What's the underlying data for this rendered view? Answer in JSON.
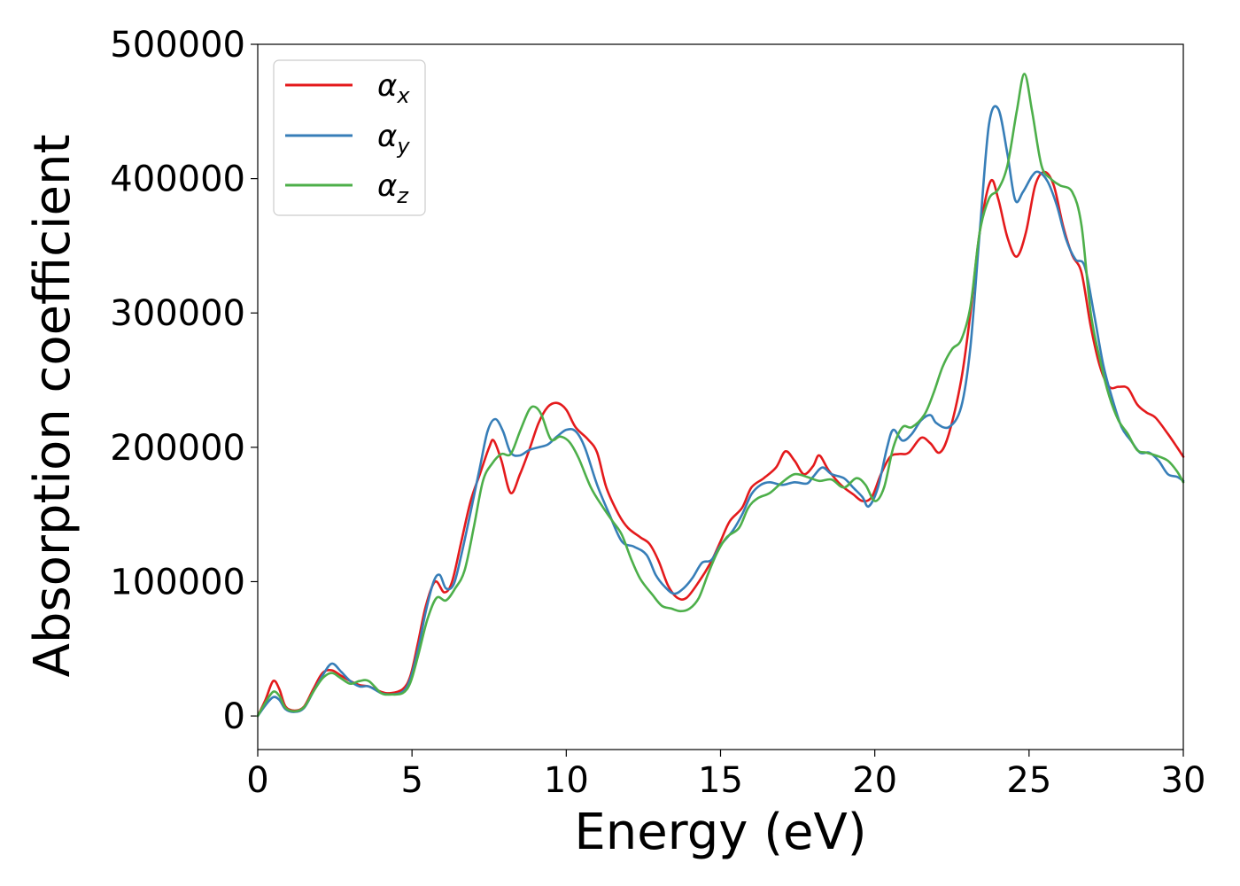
{
  "chart_data": {
    "type": "line",
    "xlabel": "Energy (eV)",
    "ylabel": "Absorption coefficient",
    "xlim": [
      0,
      30
    ],
    "ylim": [
      -25000,
      500000
    ],
    "xticks": [
      "0",
      "5",
      "10",
      "15",
      "20",
      "25",
      "30"
    ],
    "yticks": [
      "0",
      "100000",
      "200000",
      "300000",
      "400000",
      "500000"
    ],
    "grid": false,
    "legend_position": "upper-left",
    "series": [
      {
        "name": "α",
        "subscript": "x",
        "color": "#e41a1c",
        "points": [
          [
            0,
            0
          ],
          [
            0.25,
            12000
          ],
          [
            0.5,
            26000
          ],
          [
            0.7,
            20000
          ],
          [
            0.9,
            7000
          ],
          [
            1.2,
            4000
          ],
          [
            1.5,
            7000
          ],
          [
            1.8,
            20000
          ],
          [
            2.1,
            32000
          ],
          [
            2.4,
            34000
          ],
          [
            2.7,
            30000
          ],
          [
            3.0,
            26000
          ],
          [
            3.3,
            23000
          ],
          [
            3.6,
            22000
          ],
          [
            4.0,
            18000
          ],
          [
            4.3,
            17000
          ],
          [
            4.7,
            20000
          ],
          [
            4.95,
            30000
          ],
          [
            5.2,
            55000
          ],
          [
            5.45,
            82000
          ],
          [
            5.75,
            100000
          ],
          [
            6.05,
            92000
          ],
          [
            6.3,
            100000
          ],
          [
            6.6,
            130000
          ],
          [
            6.9,
            160000
          ],
          [
            7.2,
            180000
          ],
          [
            7.5,
            200000
          ],
          [
            7.65,
            205000
          ],
          [
            7.9,
            190000
          ],
          [
            8.2,
            166000
          ],
          [
            8.5,
            180000
          ],
          [
            8.8,
            198000
          ],
          [
            9.1,
            218000
          ],
          [
            9.4,
            230000
          ],
          [
            9.7,
            233000
          ],
          [
            10.0,
            228000
          ],
          [
            10.3,
            215000
          ],
          [
            10.7,
            206000
          ],
          [
            11.0,
            196000
          ],
          [
            11.3,
            170000
          ],
          [
            11.7,
            150000
          ],
          [
            12.0,
            140000
          ],
          [
            12.4,
            133000
          ],
          [
            12.7,
            128000
          ],
          [
            13.0,
            115000
          ],
          [
            13.3,
            97000
          ],
          [
            13.6,
            88000
          ],
          [
            13.9,
            88000
          ],
          [
            14.3,
            100000
          ],
          [
            14.7,
            115000
          ],
          [
            15.0,
            130000
          ],
          [
            15.3,
            145000
          ],
          [
            15.7,
            155000
          ],
          [
            16.0,
            170000
          ],
          [
            16.4,
            177000
          ],
          [
            16.8,
            185000
          ],
          [
            17.1,
            197000
          ],
          [
            17.4,
            190000
          ],
          [
            17.7,
            180000
          ],
          [
            18.0,
            186000
          ],
          [
            18.2,
            194000
          ],
          [
            18.5,
            183000
          ],
          [
            18.9,
            172000
          ],
          [
            19.3,
            165000
          ],
          [
            19.6,
            160000
          ],
          [
            19.9,
            163000
          ],
          [
            20.2,
            180000
          ],
          [
            20.5,
            193000
          ],
          [
            20.8,
            195000
          ],
          [
            21.1,
            196000
          ],
          [
            21.5,
            207000
          ],
          [
            21.8,
            203000
          ],
          [
            22.1,
            196000
          ],
          [
            22.4,
            210000
          ],
          [
            22.8,
            250000
          ],
          [
            23.1,
            300000
          ],
          [
            23.4,
            360000
          ],
          [
            23.75,
            398000
          ],
          [
            24.0,
            385000
          ],
          [
            24.3,
            356000
          ],
          [
            24.6,
            342000
          ],
          [
            24.9,
            360000
          ],
          [
            25.2,
            395000
          ],
          [
            25.5,
            405000
          ],
          [
            25.8,
            395000
          ],
          [
            26.1,
            365000
          ],
          [
            26.4,
            343000
          ],
          [
            26.7,
            330000
          ],
          [
            27.0,
            290000
          ],
          [
            27.3,
            260000
          ],
          [
            27.6,
            245000
          ],
          [
            27.9,
            245000
          ],
          [
            28.2,
            244000
          ],
          [
            28.5,
            232000
          ],
          [
            28.8,
            226000
          ],
          [
            29.1,
            222000
          ],
          [
            29.5,
            210000
          ],
          [
            29.8,
            200000
          ],
          [
            30.0,
            193000
          ]
        ]
      },
      {
        "name": "α",
        "subscript": "y",
        "color": "#377eb8",
        "points": [
          [
            0,
            0
          ],
          [
            0.25,
            8000
          ],
          [
            0.5,
            14000
          ],
          [
            0.7,
            12000
          ],
          [
            0.9,
            5000
          ],
          [
            1.2,
            3000
          ],
          [
            1.5,
            6000
          ],
          [
            1.8,
            18000
          ],
          [
            2.1,
            30000
          ],
          [
            2.4,
            39000
          ],
          [
            2.7,
            33000
          ],
          [
            3.0,
            26000
          ],
          [
            3.3,
            22000
          ],
          [
            3.6,
            22000
          ],
          [
            4.0,
            17000
          ],
          [
            4.3,
            16000
          ],
          [
            4.7,
            18000
          ],
          [
            4.95,
            28000
          ],
          [
            5.2,
            50000
          ],
          [
            5.45,
            78000
          ],
          [
            5.7,
            100000
          ],
          [
            5.9,
            105000
          ],
          [
            6.1,
            95000
          ],
          [
            6.35,
            98000
          ],
          [
            6.6,
            120000
          ],
          [
            6.9,
            152000
          ],
          [
            7.2,
            185000
          ],
          [
            7.45,
            212000
          ],
          [
            7.7,
            221000
          ],
          [
            7.95,
            212000
          ],
          [
            8.2,
            196000
          ],
          [
            8.5,
            194000
          ],
          [
            8.8,
            198000
          ],
          [
            9.1,
            200000
          ],
          [
            9.4,
            202000
          ],
          [
            9.7,
            208000
          ],
          [
            10.0,
            213000
          ],
          [
            10.3,
            212000
          ],
          [
            10.6,
            200000
          ],
          [
            11.0,
            172000
          ],
          [
            11.4,
            150000
          ],
          [
            11.8,
            130000
          ],
          [
            12.2,
            126000
          ],
          [
            12.6,
            120000
          ],
          [
            12.9,
            105000
          ],
          [
            13.2,
            96000
          ],
          [
            13.5,
            91000
          ],
          [
            13.8,
            95000
          ],
          [
            14.1,
            103000
          ],
          [
            14.4,
            114000
          ],
          [
            14.7,
            116000
          ],
          [
            15.0,
            127000
          ],
          [
            15.4,
            138000
          ],
          [
            15.7,
            150000
          ],
          [
            16.0,
            165000
          ],
          [
            16.3,
            172000
          ],
          [
            16.6,
            174000
          ],
          [
            17.0,
            172000
          ],
          [
            17.4,
            174000
          ],
          [
            17.8,
            173000
          ],
          [
            18.0,
            178000
          ],
          [
            18.3,
            185000
          ],
          [
            18.6,
            180000
          ],
          [
            19.0,
            177000
          ],
          [
            19.3,
            170000
          ],
          [
            19.6,
            163000
          ],
          [
            19.8,
            156000
          ],
          [
            20.1,
            170000
          ],
          [
            20.4,
            200000
          ],
          [
            20.6,
            213000
          ],
          [
            20.9,
            205000
          ],
          [
            21.2,
            210000
          ],
          [
            21.5,
            220000
          ],
          [
            21.8,
            224000
          ],
          [
            22.0,
            218000
          ],
          [
            22.4,
            215000
          ],
          [
            22.8,
            230000
          ],
          [
            23.1,
            275000
          ],
          [
            23.4,
            360000
          ],
          [
            23.7,
            440000
          ],
          [
            24.0,
            452000
          ],
          [
            24.3,
            418000
          ],
          [
            24.55,
            384000
          ],
          [
            24.8,
            390000
          ],
          [
            25.1,
            402000
          ],
          [
            25.3,
            405000
          ],
          [
            25.6,
            398000
          ],
          [
            25.9,
            380000
          ],
          [
            26.2,
            355000
          ],
          [
            26.5,
            340000
          ],
          [
            26.8,
            335000
          ],
          [
            27.1,
            300000
          ],
          [
            27.4,
            262000
          ],
          [
            27.7,
            236000
          ],
          [
            28.0,
            215000
          ],
          [
            28.3,
            205000
          ],
          [
            28.6,
            196000
          ],
          [
            28.9,
            196000
          ],
          [
            29.2,
            190000
          ],
          [
            29.5,
            180000
          ],
          [
            29.8,
            178000
          ],
          [
            30.0,
            175000
          ]
        ]
      },
      {
        "name": "α",
        "subscript": "z",
        "color": "#4daf4a",
        "points": [
          [
            0,
            0
          ],
          [
            0.25,
            10000
          ],
          [
            0.5,
            18000
          ],
          [
            0.7,
            15000
          ],
          [
            0.9,
            6000
          ],
          [
            1.2,
            3500
          ],
          [
            1.5,
            6500
          ],
          [
            1.8,
            18000
          ],
          [
            2.1,
            28000
          ],
          [
            2.4,
            32000
          ],
          [
            2.7,
            28000
          ],
          [
            3.0,
            24000
          ],
          [
            3.3,
            26000
          ],
          [
            3.6,
            26000
          ],
          [
            4.0,
            17000
          ],
          [
            4.3,
            16000
          ],
          [
            4.7,
            17000
          ],
          [
            4.95,
            25000
          ],
          [
            5.2,
            45000
          ],
          [
            5.5,
            72000
          ],
          [
            5.8,
            88000
          ],
          [
            6.1,
            86000
          ],
          [
            6.4,
            95000
          ],
          [
            6.7,
            108000
          ],
          [
            7.0,
            140000
          ],
          [
            7.3,
            175000
          ],
          [
            7.6,
            188000
          ],
          [
            7.9,
            195000
          ],
          [
            8.2,
            195000
          ],
          [
            8.5,
            212000
          ],
          [
            8.8,
            228000
          ],
          [
            9.0,
            230000
          ],
          [
            9.2,
            224000
          ],
          [
            9.5,
            206000
          ],
          [
            9.8,
            208000
          ],
          [
            10.1,
            204000
          ],
          [
            10.4,
            192000
          ],
          [
            10.8,
            170000
          ],
          [
            11.2,
            155000
          ],
          [
            11.5,
            145000
          ],
          [
            11.8,
            135000
          ],
          [
            12.1,
            117000
          ],
          [
            12.4,
            102000
          ],
          [
            12.8,
            90000
          ],
          [
            13.1,
            82000
          ],
          [
            13.4,
            80000
          ],
          [
            13.7,
            78000
          ],
          [
            14.0,
            80000
          ],
          [
            14.3,
            88000
          ],
          [
            14.6,
            106000
          ],
          [
            14.9,
            122000
          ],
          [
            15.2,
            133000
          ],
          [
            15.6,
            140000
          ],
          [
            15.9,
            155000
          ],
          [
            16.2,
            162000
          ],
          [
            16.6,
            166000
          ],
          [
            17.0,
            174000
          ],
          [
            17.4,
            180000
          ],
          [
            17.8,
            178000
          ],
          [
            18.2,
            175000
          ],
          [
            18.6,
            176000
          ],
          [
            19.0,
            170000
          ],
          [
            19.4,
            177000
          ],
          [
            19.7,
            172000
          ],
          [
            20.0,
            160000
          ],
          [
            20.3,
            170000
          ],
          [
            20.6,
            200000
          ],
          [
            20.9,
            215000
          ],
          [
            21.2,
            215000
          ],
          [
            21.6,
            224000
          ],
          [
            21.9,
            240000
          ],
          [
            22.2,
            260000
          ],
          [
            22.5,
            273000
          ],
          [
            22.8,
            280000
          ],
          [
            23.1,
            305000
          ],
          [
            23.4,
            360000
          ],
          [
            23.7,
            385000
          ],
          [
            24.0,
            392000
          ],
          [
            24.3,
            410000
          ],
          [
            24.6,
            450000
          ],
          [
            24.85,
            478000
          ],
          [
            25.1,
            450000
          ],
          [
            25.4,
            410000
          ],
          [
            25.7,
            400000
          ],
          [
            26.0,
            395000
          ],
          [
            26.4,
            390000
          ],
          [
            26.7,
            365000
          ],
          [
            27.0,
            300000
          ],
          [
            27.3,
            265000
          ],
          [
            27.6,
            238000
          ],
          [
            27.9,
            220000
          ],
          [
            28.2,
            210000
          ],
          [
            28.5,
            198000
          ],
          [
            28.8,
            196000
          ],
          [
            29.1,
            194000
          ],
          [
            29.5,
            190000
          ],
          [
            29.8,
            182000
          ],
          [
            30.0,
            174000
          ]
        ]
      }
    ]
  }
}
